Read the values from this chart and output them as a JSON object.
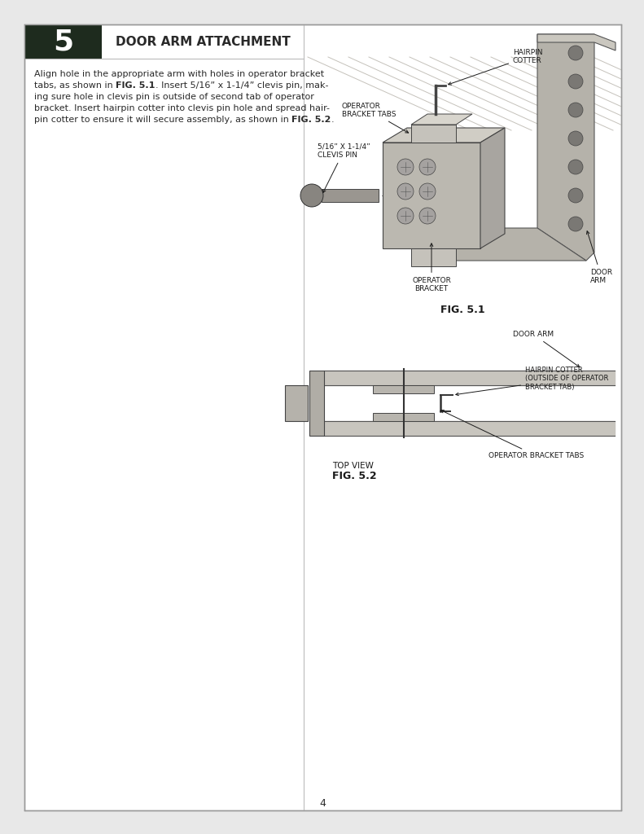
{
  "page_bg": "#e8e8e8",
  "inner_bg": "#ffffff",
  "header_box_color": "#1e2b1e",
  "header_step_number": "5",
  "header_title": "DOOR ARM ATTACHMENT",
  "fig1_caption": "FIG. 5.1",
  "fig2_caption": "FIG. 5.2",
  "page_number": "4",
  "text_color": "#2a2a2a",
  "label_color": "#1a1a1a",
  "body_lines": [
    [
      "Align hole in the appropriate arm with holes in operator bracket",
      false
    ],
    [
      "tabs, as shown in ",
      false,
      "FIG. 5.1",
      true,
      ". Insert 5/16” x 1-1/4” clevis pin, mak-",
      false
    ],
    [
      "ing sure hole in clevis pin is outside of second tab of operator",
      false
    ],
    [
      "bracket. Insert hairpin cotter into clevis pin hole and spread hair-",
      false
    ],
    [
      "pin cotter to ensure it will secure assembly, as shown in ",
      false,
      "FIG. 5.2",
      true,
      ".",
      false
    ]
  ]
}
